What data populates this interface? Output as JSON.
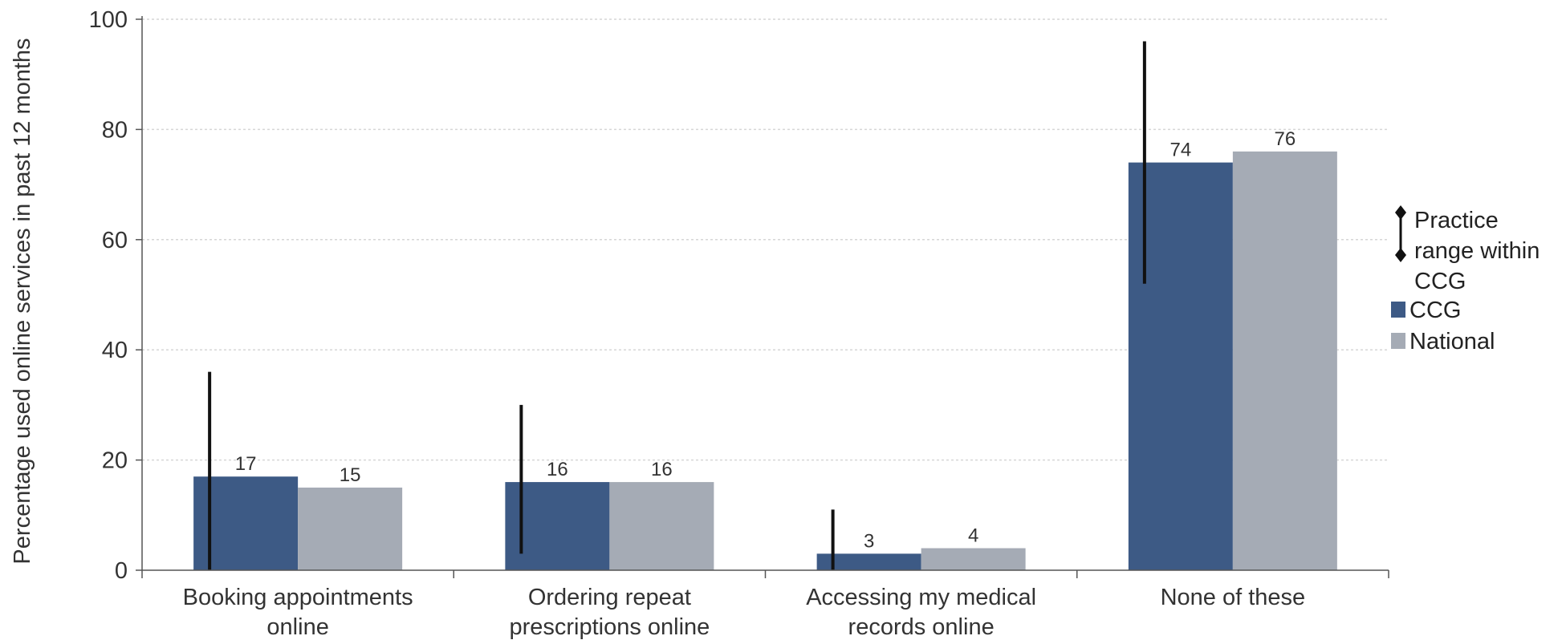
{
  "chart_data": {
    "type": "bar",
    "title": "",
    "xlabel": "",
    "ylabel": "Percentage used online services in past 12 months",
    "ylim": [
      0,
      100
    ],
    "yticks": [
      0,
      20,
      40,
      60,
      80,
      100
    ],
    "grid": true,
    "legend_position": "right",
    "categories": [
      [
        "Booking appointments",
        "online"
      ],
      [
        "Ordering repeat",
        "prescriptions online"
      ],
      [
        "Accessing my medical",
        "records online"
      ],
      [
        "None of these"
      ]
    ],
    "series": [
      {
        "name": "CCG",
        "color": "#3d5a85",
        "values": [
          17,
          16,
          3,
          74
        ]
      },
      {
        "name": "National",
        "color": "#a5abb5",
        "values": [
          15,
          16,
          4,
          76
        ]
      }
    ],
    "practice_range": [
      [
        0,
        36
      ],
      [
        3,
        30
      ],
      [
        0,
        11
      ],
      [
        52,
        96
      ]
    ],
    "legend": {
      "range_label": [
        "Practice",
        "range within",
        "CCG"
      ],
      "ccg_label": "CCG",
      "national_label": "National"
    }
  }
}
